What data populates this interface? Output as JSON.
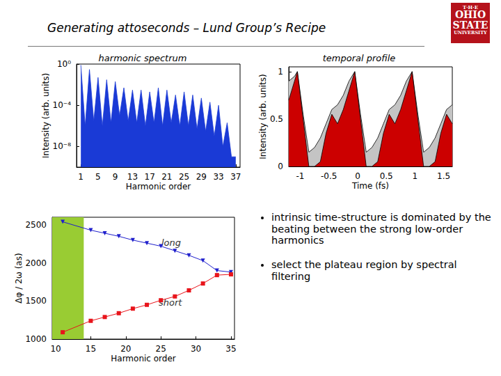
{
  "title": "Generating attoseconds – Lund Group’s Recipe",
  "logo": [
    "T·H·E",
    "OHIO",
    "STATE",
    "UNIVERSITY"
  ],
  "bullets": [
    "intrinsic time-structure is dominated by the beating between the strong low-order harmonics",
    "select the plateau region by spectral filtering"
  ],
  "chart_data": [
    {
      "type": "area",
      "title": "harmonic spectrum",
      "x_label": "Harmonic order",
      "y_label": "Intensity (arb. units)",
      "log": "y",
      "grid": false,
      "x": [
        1,
        2,
        3,
        4,
        5,
        6,
        7,
        8,
        9,
        10,
        11,
        12,
        13,
        14,
        15,
        16,
        17,
        18,
        19,
        20,
        21,
        22,
        23,
        24,
        25,
        26,
        27,
        28,
        29,
        30,
        31,
        32,
        33,
        34,
        35,
        36,
        37
      ],
      "values": [
        0.8,
        1e-06,
        0.3,
        3e-06,
        0.05,
        1e-06,
        0.03,
        2e-06,
        0.02,
        1e-05,
        0.005,
        3e-06,
        0.003,
        2e-06,
        0.003,
        1e-06,
        0.002,
        2e-06,
        0.005,
        1e-06,
        0.003,
        2e-06,
        0.001,
        1e-06,
        0.002,
        1e-06,
        0.001,
        5e-07,
        0.0005,
        3e-07,
        0.0002,
        1e-07,
        0.0001,
        1e-08,
        2e-06,
        1e-09,
        1e-09
      ],
      "color": "#1a3ad6",
      "xlim": [
        0,
        38
      ],
      "xticks": [
        1,
        5,
        9,
        13,
        17,
        21,
        25,
        29,
        33,
        37
      ],
      "ylim": [
        1e-10,
        1
      ],
      "yticks": [
        {
          "value": 1,
          "label": "10⁰"
        },
        {
          "value": 0.0001,
          "label": "10⁻⁴"
        },
        {
          "value": 1e-08,
          "label": "10⁻⁸"
        }
      ]
    },
    {
      "type": "area",
      "title": "temporal profile",
      "x_label": "Time (fs)",
      "y_label": "Intensity (arb. units)",
      "grid": false,
      "x": [
        -1.2,
        -1.1,
        -1.05,
        -0.95,
        -0.85,
        -0.75,
        -0.65,
        -0.55,
        -0.45,
        -0.35,
        -0.25,
        -0.15,
        -0.05,
        0.05,
        0.15,
        0.25,
        0.35,
        0.45,
        0.55,
        0.65,
        0.75,
        0.85,
        0.95,
        1.05,
        1.15,
        1.25,
        1.35,
        1.45,
        1.55,
        1.65
      ],
      "series": [
        {
          "color": "#c4c4c4",
          "values": [
            0.9,
            0.95,
            1.0,
            0.55,
            0.15,
            0.2,
            0.3,
            0.45,
            0.6,
            0.65,
            0.75,
            0.9,
            1.0,
            0.55,
            0.15,
            0.2,
            0.3,
            0.45,
            0.6,
            0.65,
            0.75,
            0.9,
            1.0,
            0.55,
            0.15,
            0.2,
            0.3,
            0.45,
            0.6,
            0.65
          ]
        },
        {
          "color": "#cc0000",
          "values": [
            0.7,
            0.9,
            1.0,
            0.5,
            0,
            0,
            0.05,
            0.35,
            0.55,
            0.45,
            0.6,
            0.8,
            1.0,
            0.5,
            0,
            0,
            0.05,
            0.35,
            0.55,
            0.45,
            0.6,
            0.8,
            1.0,
            0.5,
            0,
            0,
            0.05,
            0.35,
            0.55,
            0.45
          ]
        }
      ],
      "xlim": [
        -1.2,
        1.65
      ],
      "xticks": [
        -1,
        -0.5,
        0,
        0.5,
        1,
        1.5
      ],
      "ylim": [
        0,
        1.05
      ],
      "yticks": [
        0,
        0.5,
        1
      ]
    },
    {
      "type": "line",
      "x_label": "Harmonic order",
      "y_label": "Δφ / 2ω (as)",
      "grid": false,
      "x": [
        11,
        15,
        17,
        19,
        21,
        23,
        25,
        27,
        29,
        31,
        33,
        35
      ],
      "series": [
        {
          "name": "long",
          "color": "#1f1fcc",
          "marker": "triangle-down",
          "values": [
            2540,
            2430,
            2390,
            2350,
            2300,
            2260,
            2220,
            2160,
            2100,
            2030,
            1900,
            1880
          ]
        },
        {
          "name": "short",
          "color": "#e8141b",
          "marker": "square",
          "values": [
            1090,
            1240,
            1290,
            1340,
            1400,
            1450,
            1510,
            1560,
            1640,
            1730,
            1840,
            1850
          ]
        }
      ],
      "highlight": {
        "range": [
          9.5,
          14
        ],
        "color": "#99cc33"
      },
      "xlim": [
        9.5,
        35.5
      ],
      "xticks": [
        10,
        15,
        20,
        25,
        30,
        35
      ],
      "ylim": [
        1000,
        2600
      ],
      "yticks": [
        1000,
        1500,
        2000,
        2500
      ]
    }
  ]
}
